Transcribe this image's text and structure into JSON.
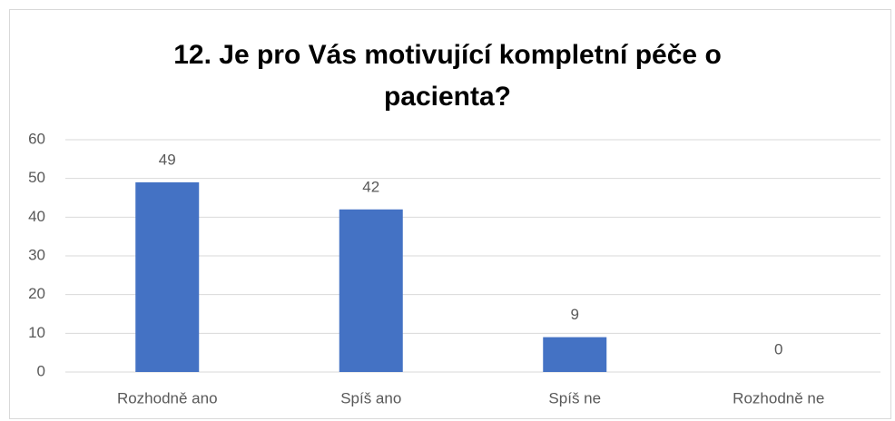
{
  "chart_data": {
    "type": "bar",
    "title": "12. Je pro Vás motivující kompletní péče o pacienta?",
    "categories": [
      "Rozhodně ano",
      "Spíš ano",
      "Spíš ne",
      "Rozhodně ne"
    ],
    "values": [
      49,
      42,
      9,
      0
    ],
    "color": "#4472c4",
    "ylim": [
      0,
      60
    ],
    "yticks": [
      0,
      10,
      20,
      30,
      40,
      50,
      60
    ],
    "grid": true
  }
}
